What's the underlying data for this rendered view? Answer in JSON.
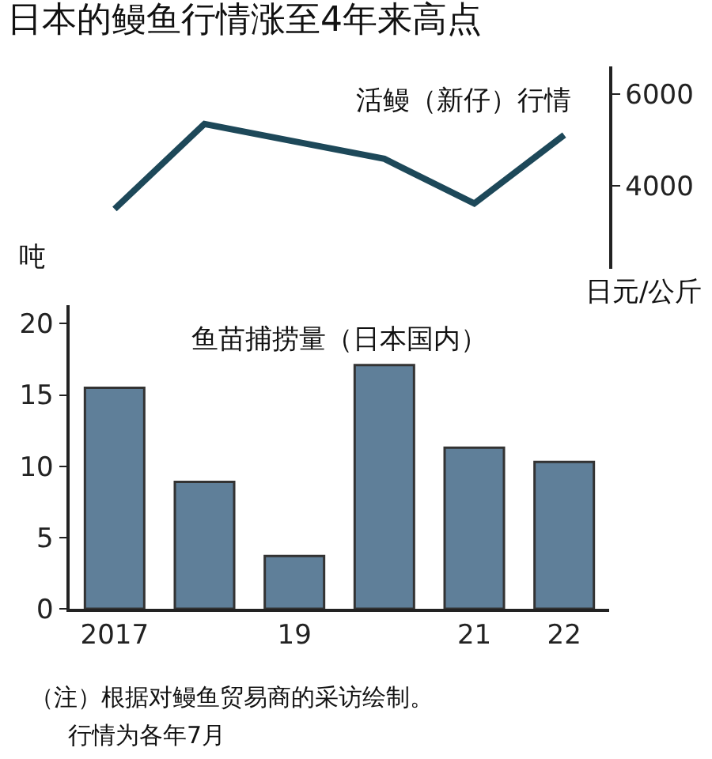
{
  "chart_data": [
    {
      "type": "line",
      "title": "日本的鳗鱼行情涨至4年来高点",
      "ylabel": "日元/公斤",
      "annotations": [
        "活鳗（新仔）行情"
      ],
      "categories": [
        "2017",
        null,
        "19",
        null,
        "21",
        "22"
      ],
      "series": [
        {
          "color": "#1d4859",
          "values": [
            3500,
            5350,
            4970,
            4590,
            3620,
            5110
          ]
        }
      ],
      "ylim": [
        2200,
        6600
      ],
      "yticks": [
        4000,
        6000
      ],
      "tick_labels": "y",
      "marker": "none",
      "line_style": "solid"
    },
    {
      "type": "bar",
      "ylabel": "吨",
      "annotations": [
        "鱼苗捕捞量（日本国内）",
        "（注）根据对鳗鱼贸易商的采访绘制。",
        "行情为各年7月"
      ],
      "categories": [
        "2017",
        null,
        "19",
        null,
        "21",
        "22"
      ],
      "series": [
        {
          "color": "#5f7f99",
          "values": [
            15.5,
            8.9,
            3.7,
            17.1,
            11.3,
            10.3
          ]
        }
      ],
      "ylim": [
        0,
        21.3
      ],
      "yticks": [
        0,
        5,
        10,
        15,
        20
      ]
    }
  ]
}
